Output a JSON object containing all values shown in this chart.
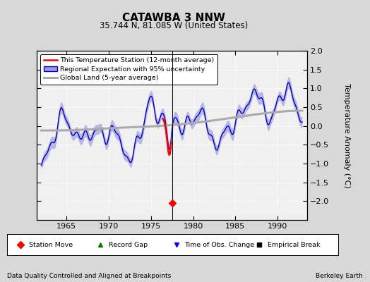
{
  "title": "CATAWBA 3 NNW",
  "subtitle": "35.744 N, 81.085 W (United States)",
  "xlabel_bottom_left": "Data Quality Controlled and Aligned at Breakpoints",
  "xlabel_bottom_right": "Berkeley Earth",
  "ylabel": "Temperature Anomaly (°C)",
  "xlim": [
    1961.5,
    1993.5
  ],
  "ylim": [
    -2.5,
    2.0
  ],
  "yticks": [
    -2.0,
    -1.5,
    -1.0,
    -0.5,
    0.0,
    0.5,
    1.0,
    1.5,
    2.0
  ],
  "xticks": [
    1965,
    1970,
    1975,
    1980,
    1985,
    1990
  ],
  "background_color": "#d8d8d8",
  "plot_background": "#f0f0f0",
  "regional_color": "#0000cc",
  "regional_fill_color": "#9999dd",
  "global_color": "#aaaaaa",
  "station_color": "red",
  "obs_change_x": 1977.5,
  "station_move_y": -2.05,
  "vertical_line_x": 1977.5
}
